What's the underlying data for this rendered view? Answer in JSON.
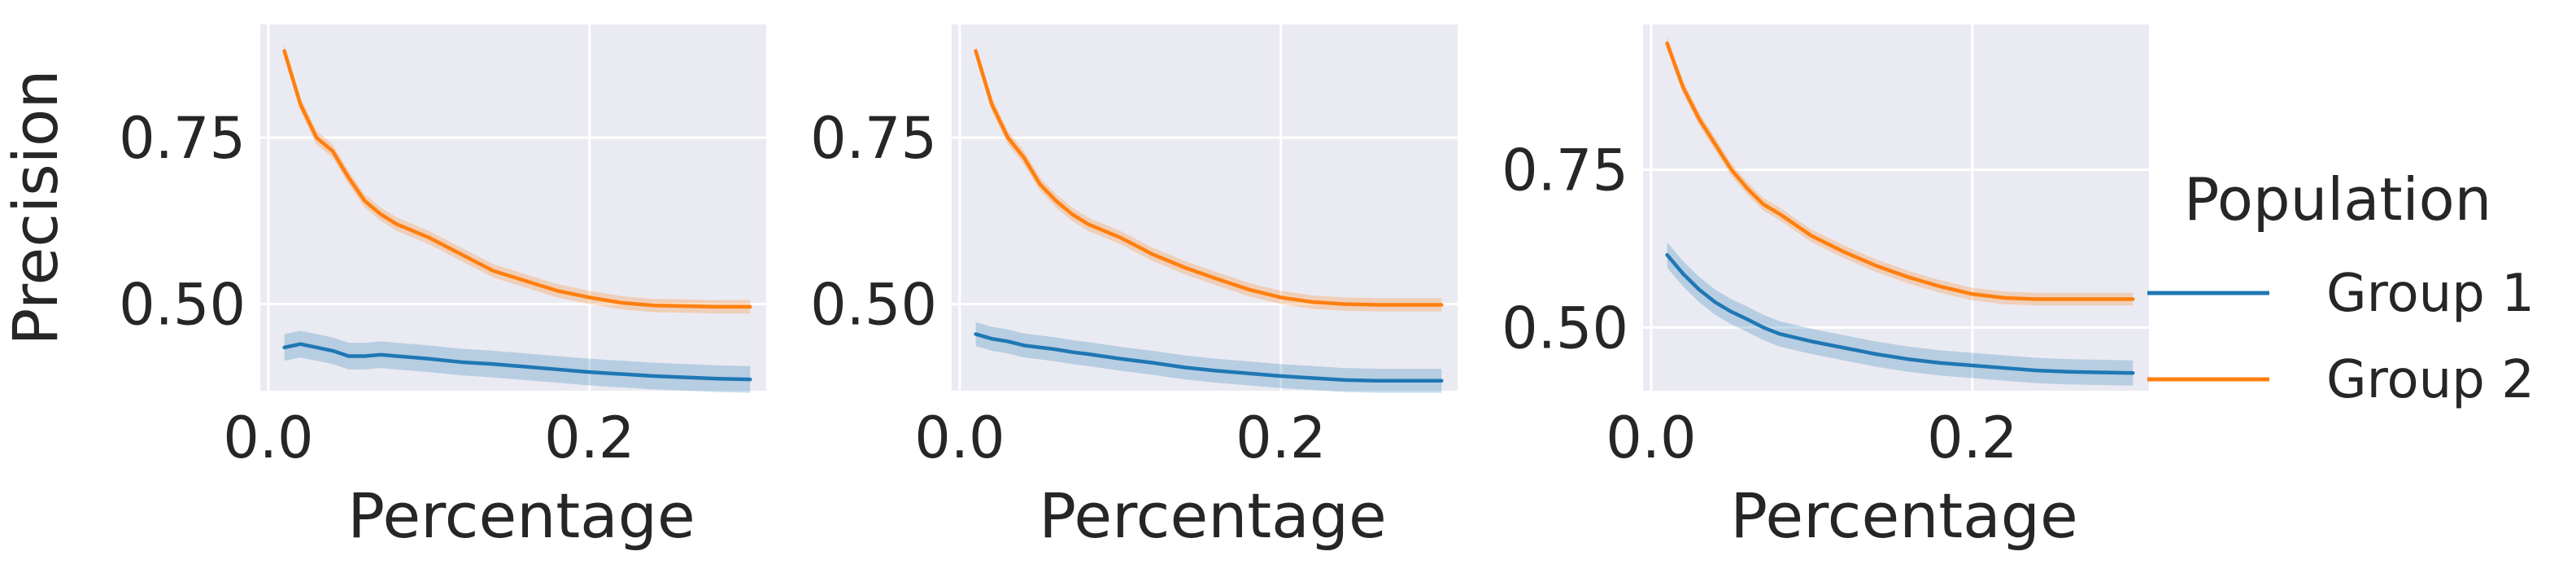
{
  "chart_data": [
    {
      "type": "line",
      "title": "",
      "xlabel": "Percentage",
      "ylabel": "Precision",
      "xlim": [
        -0.005,
        0.31
      ],
      "ylim": [
        0.37,
        0.92
      ],
      "xticks": [
        0.0,
        0.2
      ],
      "xtick_labels": [
        "0.0",
        "0.2"
      ],
      "yticks": [
        0.5,
        0.75
      ],
      "ytick_labels": [
        "0.50",
        "0.75"
      ],
      "grid": true,
      "x": [
        0.01,
        0.02,
        0.03,
        0.04,
        0.05,
        0.06,
        0.07,
        0.08,
        0.1,
        0.12,
        0.14,
        0.16,
        0.18,
        0.2,
        0.22,
        0.24,
        0.26,
        0.28,
        0.3
      ],
      "series": [
        {
          "name": "Group 1",
          "values": [
            0.435,
            0.44,
            0.435,
            0.43,
            0.422,
            0.422,
            0.424,
            0.422,
            0.418,
            0.413,
            0.41,
            0.406,
            0.402,
            0.398,
            0.395,
            0.392,
            0.39,
            0.388,
            0.387
          ],
          "band": 0.02
        },
        {
          "name": "Group 2",
          "values": [
            0.88,
            0.8,
            0.75,
            0.73,
            0.69,
            0.655,
            0.635,
            0.62,
            0.6,
            0.575,
            0.55,
            0.535,
            0.52,
            0.51,
            0.502,
            0.498,
            0.497,
            0.496,
            0.496
          ],
          "band": 0.01
        }
      ]
    },
    {
      "type": "line",
      "title": "",
      "xlabel": "Percentage",
      "ylabel": "",
      "xlim": [
        -0.005,
        0.31
      ],
      "ylim": [
        0.37,
        0.92
      ],
      "xticks": [
        0.0,
        0.2
      ],
      "xtick_labels": [
        "0.0",
        "0.2"
      ],
      "yticks": [
        0.5,
        0.75
      ],
      "ytick_labels": [
        "0.50",
        "0.75"
      ],
      "grid": true,
      "x": [
        0.01,
        0.02,
        0.03,
        0.04,
        0.05,
        0.06,
        0.07,
        0.08,
        0.1,
        0.12,
        0.14,
        0.16,
        0.18,
        0.2,
        0.22,
        0.24,
        0.26,
        0.28,
        0.3
      ],
      "series": [
        {
          "name": "Group 1",
          "values": [
            0.455,
            0.448,
            0.444,
            0.438,
            0.435,
            0.432,
            0.428,
            0.425,
            0.418,
            0.412,
            0.405,
            0.4,
            0.396,
            0.392,
            0.389,
            0.386,
            0.385,
            0.385,
            0.385
          ],
          "band": 0.018
        },
        {
          "name": "Group 2",
          "values": [
            0.88,
            0.8,
            0.75,
            0.72,
            0.68,
            0.655,
            0.635,
            0.62,
            0.6,
            0.575,
            0.555,
            0.538,
            0.522,
            0.51,
            0.503,
            0.5,
            0.499,
            0.499,
            0.499
          ],
          "band": 0.01
        }
      ]
    },
    {
      "type": "line",
      "title": "",
      "xlabel": "Percentage",
      "ylabel": "",
      "xlim": [
        -0.005,
        0.31
      ],
      "ylim": [
        0.4,
        0.98
      ],
      "xticks": [
        0.0,
        0.2
      ],
      "xtick_labels": [
        "0.0",
        "0.2"
      ],
      "yticks": [
        0.5,
        0.75
      ],
      "ytick_labels": [
        "0.50",
        "0.75"
      ],
      "grid": true,
      "x": [
        0.01,
        0.02,
        0.03,
        0.04,
        0.05,
        0.06,
        0.07,
        0.08,
        0.1,
        0.12,
        0.14,
        0.16,
        0.18,
        0.2,
        0.22,
        0.24,
        0.26,
        0.28,
        0.3
      ],
      "series": [
        {
          "name": "Group 1",
          "values": [
            0.615,
            0.585,
            0.56,
            0.54,
            0.525,
            0.513,
            0.5,
            0.49,
            0.478,
            0.468,
            0.458,
            0.45,
            0.444,
            0.44,
            0.436,
            0.432,
            0.43,
            0.429,
            0.428
          ],
          "band": 0.02
        },
        {
          "name": "Group 2",
          "values": [
            0.95,
            0.88,
            0.83,
            0.79,
            0.75,
            0.72,
            0.695,
            0.68,
            0.645,
            0.62,
            0.598,
            0.58,
            0.565,
            0.553,
            0.547,
            0.545,
            0.545,
            0.545,
            0.545
          ],
          "band": 0.01
        }
      ]
    }
  ],
  "legend": {
    "title": "Population",
    "placement": "right",
    "items": [
      {
        "label": "Group 1",
        "color": "#1f77b4"
      },
      {
        "label": "Group 2",
        "color": "#ff7f0e"
      }
    ]
  }
}
